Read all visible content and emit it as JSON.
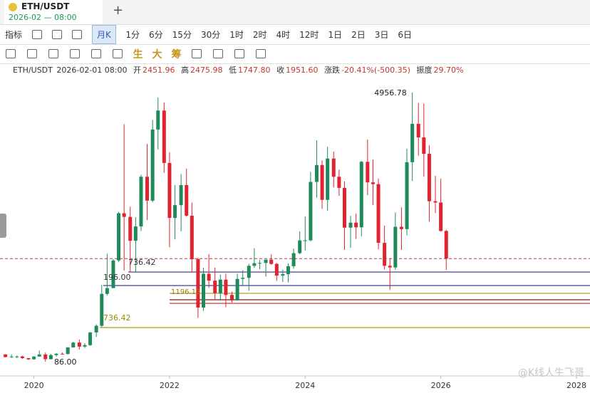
{
  "toolbar": {
    "tab_symbol": "ETH/USDT",
    "tab_time": "2026-02 — 08:00",
    "indicator": "指标",
    "period": "月K",
    "intervals": [
      "1分",
      "6分",
      "15分",
      "30分",
      "1时",
      "2时",
      "4时",
      "12时",
      "1日",
      "2日",
      "3日",
      "6日"
    ],
    "tools": [
      "生",
      "大",
      "筹"
    ]
  },
  "info": {
    "symbol": "ETH/USDT",
    "time": "2026-02-01 08:00",
    "open_label": "开",
    "open": "2451.96",
    "high_label": "高",
    "high": "2475.98",
    "low_label": "低",
    "low": "1747.80",
    "close_label": "收",
    "close": "1951.60",
    "change_label": "涨跌",
    "change": "-20.41%(-500.35)",
    "amplitude_label": "振度",
    "amplitude": "29.70%"
  },
  "watermark": "@K线人生飞哥",
  "chart_data": {
    "type": "candlestick",
    "x": [
      2019.58,
      2019.67,
      2019.75,
      2019.83,
      2019.92,
      2020.0,
      2020.08,
      2020.17,
      2020.25,
      2020.33,
      2020.42,
      2020.5,
      2020.58,
      2020.67,
      2020.75,
      2020.83,
      2020.92,
      2021.0,
      2021.08,
      2021.17,
      2021.25,
      2021.33,
      2021.42,
      2021.5,
      2021.58,
      2021.67,
      2021.75,
      2021.83,
      2021.92,
      2022.0,
      2022.08,
      2022.17,
      2022.25,
      2022.33,
      2022.42,
      2022.5,
      2022.58,
      2022.67,
      2022.75,
      2022.83,
      2022.92,
      2023.0,
      2023.08,
      2023.17,
      2023.25,
      2023.33,
      2023.42,
      2023.5,
      2023.58,
      2023.67,
      2023.75,
      2023.83,
      2023.92,
      2024.0,
      2024.08,
      2024.17,
      2024.25,
      2024.33,
      2024.42,
      2024.5,
      2024.58,
      2024.67,
      2024.75,
      2024.83,
      2024.92,
      2025.0,
      2025.08,
      2025.17,
      2025.25,
      2025.33,
      2025.42,
      2025.5,
      2025.58,
      2025.67,
      2025.75,
      2025.83,
      2025.92,
      2026.0,
      2026.08
    ],
    "open": [
      218,
      172,
      180,
      183,
      152,
      130,
      180,
      218,
      133,
      207,
      231,
      226,
      346,
      433,
      360,
      387,
      617,
      737,
      1314,
      1419,
      1919,
      2773,
      2707,
      2275,
      2534,
      3433,
      3001,
      4288,
      4631,
      3683,
      2688,
      2920,
      3283,
      2729,
      1942,
      1067,
      1678,
      1554,
      1328,
      1572,
      1295,
      1196,
      1585,
      1605,
      1822,
      1869,
      1874,
      1934,
      1857,
      1645,
      1671,
      1815,
      2051,
      2282,
      2283,
      3340,
      3645,
      3015,
      3763,
      3433,
      3232,
      2513,
      2603,
      2518,
      3704,
      3332,
      3300,
      2237,
      1822,
      1793,
      2528,
      2486,
      3697,
      4391,
      4145,
      3848,
      2991,
      2967,
      2451.96
    ],
    "high": [
      225,
      222,
      198,
      195,
      155,
      186,
      288,
      253,
      227,
      245,
      254,
      348,
      446,
      489,
      420,
      623,
      762,
      1476,
      2041,
      1944,
      2797,
      4384,
      2891,
      2700,
      3469,
      4027,
      4460,
      4868,
      4778,
      3876,
      3284,
      3482,
      3580,
      2966,
      1970,
      1785,
      2030,
      1790,
      1664,
      1679,
      1353,
      1678,
      1743,
      1857,
      2141,
      1928,
      1929,
      2029,
      1873,
      1753,
      1866,
      2134,
      2445,
      2718,
      3522,
      4093,
      3730,
      3977,
      3888,
      3562,
      3349,
      2726,
      2770,
      3720,
      4107,
      3745,
      3400,
      2550,
      1957,
      2788,
      2880,
      3941,
      4956.78,
      4770,
      4755,
      4000,
      3450,
      3400,
      2475.98
    ],
    "low": [
      165,
      155,
      151,
      139,
      117,
      127,
      180,
      86,
      130,
      178,
      216,
      222,
      345,
      308,
      334,
      374,
      535,
      714,
      1283,
      1428,
      1889,
      1737,
      1707,
      1718,
      2451,
      2652,
      2970,
      3928,
      3503,
      2159,
      2300,
      2447,
      2710,
      1703,
      880,
      1006,
      1422,
      1220,
      1191,
      1073,
      1159,
      1191,
      1463,
      1370,
      1784,
      1760,
      1626,
      1840,
      1550,
      1531,
      1521,
      1772,
      2032,
      2100,
      2265,
      3056,
      2853,
      2817,
      3240,
      3087,
      2111,
      2150,
      2309,
      2357,
      3098,
      2920,
      2120,
      1754,
      1385,
      1751,
      2111,
      2373,
      3355,
      3815,
      3435,
      2620,
      2775,
      2440,
      1747.8
    ],
    "close": [
      172,
      180,
      183,
      152,
      130,
      180,
      218,
      133,
      207,
      231,
      226,
      346,
      433,
      360,
      387,
      617,
      737,
      1314,
      1419,
      1919,
      2773,
      2707,
      2275,
      2534,
      3433,
      3001,
      4288,
      4631,
      3683,
      2688,
      2920,
      3283,
      2729,
      1942,
      1067,
      1678,
      1554,
      1328,
      1572,
      1295,
      1196,
      1585,
      1605,
      1822,
      1869,
      1874,
      1934,
      1857,
      1645,
      1671,
      1815,
      2051,
      2282,
      2283,
      3340,
      3645,
      3015,
      3763,
      3433,
      3232,
      2513,
      2603,
      2518,
      3704,
      3332,
      3300,
      2237,
      1822,
      1793,
      2528,
      2486,
      3697,
      4391,
      4145,
      3848,
      2991,
      2967,
      2451.96,
      1951.6
    ],
    "up_color": "#1f8a5b",
    "down_color": "#e0232e",
    "xlim": [
      2019.5,
      2028.2
    ],
    "xticks": [
      2020,
      2022,
      2024,
      2026,
      2028
    ],
    "ylim": [
      -170,
      5240
    ],
    "levels": [
      {
        "value": 1710,
        "color": "#3d2f7a"
      },
      {
        "value": 1465,
        "color": "#2d2d7a"
      },
      {
        "value": 1324,
        "color": "#b5a21e"
      },
      {
        "value": 1208,
        "color": "#7a1a1a"
      },
      {
        "value": 1143,
        "color": "#d42020"
      },
      {
        "value": 704,
        "color": "#a8a000"
      }
    ],
    "annotations": [
      "4956.78",
      "736.42",
      "196.00",
      "1196.13",
      "736.42",
      "86.00"
    ]
  }
}
